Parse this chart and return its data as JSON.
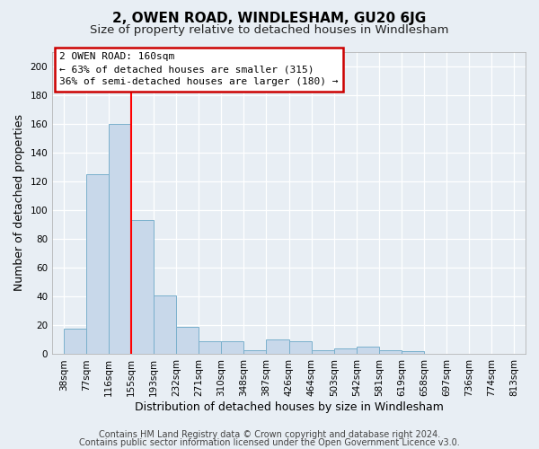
{
  "title": "2, OWEN ROAD, WINDLESHAM, GU20 6JG",
  "subtitle": "Size of property relative to detached houses in Windlesham",
  "xlabel": "Distribution of detached houses by size in Windlesham",
  "ylabel": "Number of detached properties",
  "bar_values": [
    18,
    125,
    160,
    93,
    41,
    19,
    9,
    9,
    3,
    10,
    9,
    3,
    4,
    5,
    3,
    2
  ],
  "x_tick_labels": [
    "38sqm",
    "77sqm",
    "116sqm",
    "155sqm",
    "193sqm",
    "232sqm",
    "271sqm",
    "310sqm",
    "348sqm",
    "387sqm",
    "426sqm",
    "464sqm",
    "503sqm",
    "542sqm",
    "581sqm",
    "619sqm",
    "658sqm",
    "697sqm",
    "736sqm",
    "774sqm",
    "813sqm"
  ],
  "bar_color": "#c8d8ea",
  "bar_edge_color": "#7ab0cc",
  "ylim": [
    0,
    210
  ],
  "yticks": [
    0,
    20,
    40,
    60,
    80,
    100,
    120,
    140,
    160,
    180,
    200
  ],
  "red_line_x": 3,
  "annotation_title": "2 OWEN ROAD: 160sqm",
  "annotation_line1": "← 63% of detached houses are smaller (315)",
  "annotation_line2": "36% of semi-detached houses are larger (180) →",
  "annotation_box_color": "#ffffff",
  "annotation_box_edge": "#cc0000",
  "footer_line1": "Contains HM Land Registry data © Crown copyright and database right 2024.",
  "footer_line2": "Contains public sector information licensed under the Open Government Licence v3.0.",
  "bg_color": "#e8eef4",
  "grid_color": "#ffffff",
  "title_fontsize": 11,
  "subtitle_fontsize": 9.5,
  "axis_label_fontsize": 9,
  "tick_fontsize": 7.5,
  "footer_fontsize": 7,
  "annotation_fontsize": 8
}
